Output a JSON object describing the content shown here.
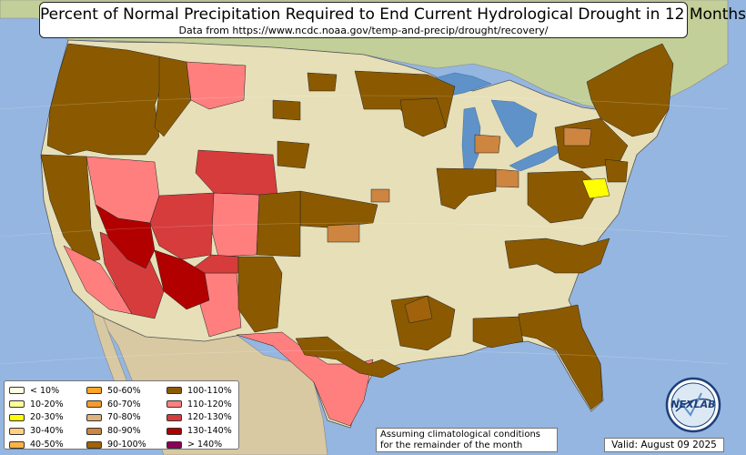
{
  "title": "Percent of Normal Precipitation Required to End Current Hydrological Drought in 12 Months",
  "subtitle": "Data from https://www.ncdc.noaa.gov/temp-and-precip/drought/recovery/",
  "legend": [
    {
      "label": "< 10%",
      "color": "#ffffe0"
    },
    {
      "label": "10-20%",
      "color": "#ffff99"
    },
    {
      "label": "20-30%",
      "color": "#ffff00"
    },
    {
      "label": "30-40%",
      "color": "#ffd17f"
    },
    {
      "label": "40-50%",
      "color": "#ffb347"
    },
    {
      "label": "50-60%",
      "color": "#ffa526"
    },
    {
      "label": "60-70%",
      "color": "#f59a2c"
    },
    {
      "label": "70-80%",
      "color": "#e0b27f"
    },
    {
      "label": "80-90%",
      "color": "#cd853f"
    },
    {
      "label": "90-100%",
      "color": "#a0620a"
    },
    {
      "label": "100-110%",
      "color": "#8b5a00"
    },
    {
      "label": "110-120%",
      "color": "#ff7f7f"
    },
    {
      "label": "120-130%",
      "color": "#d63c3c"
    },
    {
      "label": "130-140%",
      "color": "#b20000"
    },
    {
      "label": "> 140%",
      "color": "#8b0057"
    }
  ],
  "note": {
    "line1": "Assuming climatological conditions",
    "line2": "for the remainder of the month"
  },
  "valid": "Valid: August 09 2025",
  "logo_text": "NEXLAB",
  "colors": {
    "ocean": "#95b6e0",
    "land_us": "#e6dfb8",
    "land_other": "#c9d49f",
    "great_lakes": "#5f92c8"
  }
}
